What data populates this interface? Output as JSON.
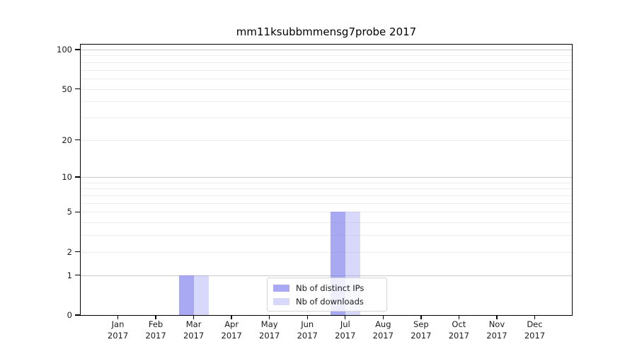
{
  "figure": {
    "background": "#ffffff"
  },
  "chart_data": {
    "type": "bar",
    "title": "mm11ksubbmmensg7probe 2017",
    "categories": [
      "Jan",
      "Feb",
      "Mar",
      "Apr",
      "May",
      "Jun",
      "Jul",
      "Aug",
      "Sep",
      "Oct",
      "Nov",
      "Dec"
    ],
    "tick_year": "2017",
    "series": [
      {
        "name": "Nb of distinct IPs",
        "color": "rgba(114,114,235,0.62)",
        "values": [
          0,
          0,
          1,
          0,
          0,
          0,
          5,
          0,
          0,
          0,
          0,
          0
        ]
      },
      {
        "name": "Nb of downloads",
        "color": "rgba(150,150,242,0.37)",
        "values": [
          0,
          0,
          1,
          0,
          0,
          0,
          5,
          0,
          0,
          0,
          0,
          0
        ]
      }
    ],
    "xlabel": "",
    "ylabel": "",
    "yscale": "log1p",
    "ylim": [
      0,
      100
    ],
    "yticks": [
      0,
      1,
      2,
      5,
      10,
      20,
      50,
      100
    ],
    "minor_gridlines": [
      2,
      3,
      4,
      5,
      6,
      7,
      8,
      9,
      20,
      30,
      40,
      50,
      60,
      70,
      80,
      90
    ],
    "decade_gridlines": [
      1,
      10,
      100
    ],
    "grid": "horizontal",
    "legend_position": "lower center"
  },
  "colors": {
    "axis": "#000000",
    "major_grid": "#c9c9c9",
    "minor_grid": "#ededed",
    "legend_border": "#d4d4d4",
    "text": "#1a1a1a"
  }
}
